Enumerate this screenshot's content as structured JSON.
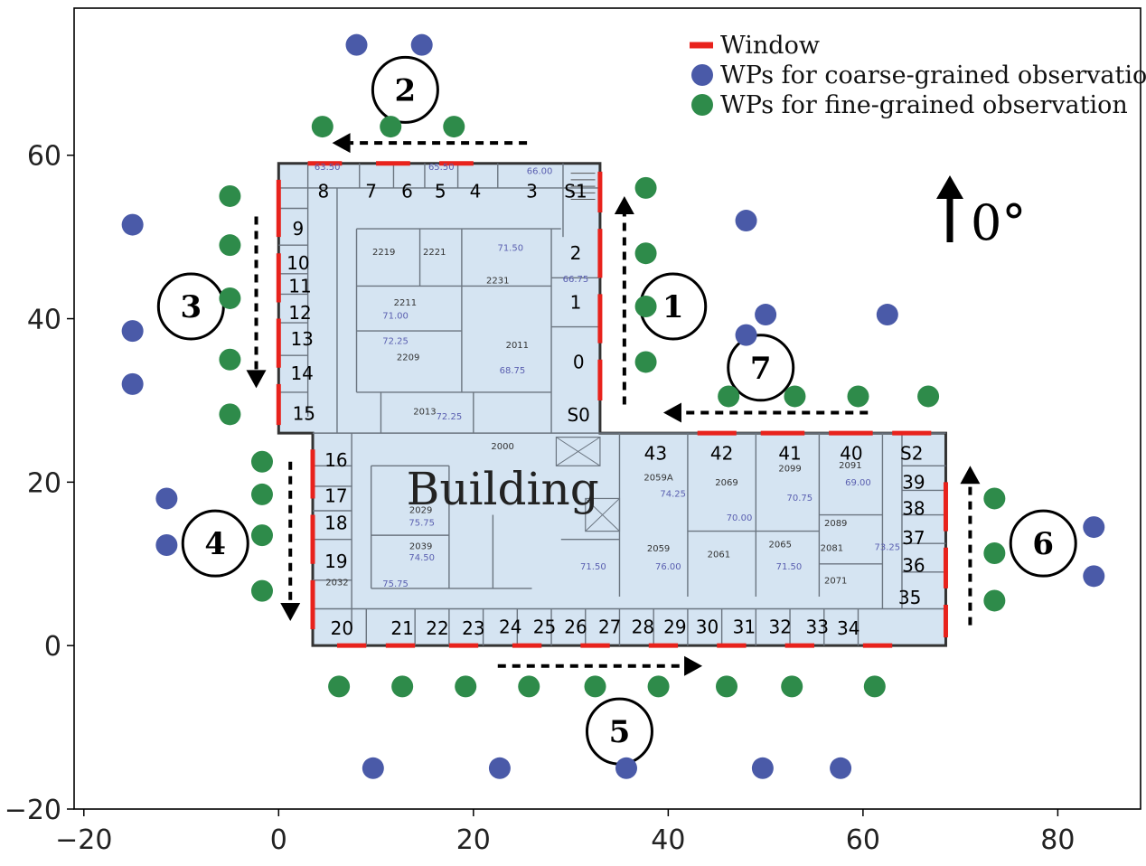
{
  "chart_data": {
    "type": "scatter",
    "xlim": [
      -21,
      88.5
    ],
    "ylim": [
      -20,
      78
    ],
    "x_ticks": [
      -20,
      0,
      20,
      40,
      60,
      80
    ],
    "y_ticks": [
      -20,
      0,
      20,
      40,
      60
    ],
    "x_tick_labels": [
      "−20",
      "0",
      "20",
      "40",
      "60",
      "80"
    ],
    "y_tick_labels": [
      "−20",
      "0",
      "20",
      "40",
      "60"
    ],
    "legend": {
      "placement": "top-right",
      "entries": [
        {
          "label": "Window",
          "color": "#e8221c",
          "kind": "line"
        },
        {
          "label": "WPs for coarse-grained observation",
          "color": "#4a5aa8",
          "kind": "point"
        },
        {
          "label": "WPs for fine-grained observation",
          "color": "#2e8b4a",
          "kind": "point"
        }
      ]
    },
    "series": [
      {
        "name": "WPs for coarse-grained observation",
        "color": "#4a5aa8",
        "points": [
          [
            8,
            73.5
          ],
          [
            14.7,
            73.5
          ],
          [
            -15,
            51.5
          ],
          [
            -15,
            38.5
          ],
          [
            -15,
            32
          ],
          [
            -11.5,
            18
          ],
          [
            -11.5,
            12.3
          ],
          [
            48,
            52
          ],
          [
            50,
            40.5
          ],
          [
            62.5,
            40.5
          ],
          [
            48,
            38
          ],
          [
            83.7,
            14.5
          ],
          [
            83.7,
            8.5
          ],
          [
            9.7,
            -15
          ],
          [
            22.7,
            -15
          ],
          [
            35.7,
            -15
          ],
          [
            49.7,
            -15
          ],
          [
            57.7,
            -15
          ]
        ]
      },
      {
        "name": "WPs for fine-grained observation",
        "color": "#2e8b4a",
        "points": [
          [
            4.5,
            63.5
          ],
          [
            11.5,
            63.5
          ],
          [
            18,
            63.5
          ],
          [
            -5,
            55
          ],
          [
            -5,
            49
          ],
          [
            -5,
            42.5
          ],
          [
            -5,
            35
          ],
          [
            -5,
            28.3
          ],
          [
            -1.7,
            22.5
          ],
          [
            -1.7,
            18.5
          ],
          [
            -1.7,
            13.5
          ],
          [
            -1.7,
            6.7
          ],
          [
            37.7,
            56
          ],
          [
            37.7,
            48
          ],
          [
            37.7,
            41.5
          ],
          [
            37.7,
            34.7
          ],
          [
            46.2,
            30.5
          ],
          [
            53,
            30.5
          ],
          [
            59.5,
            30.5
          ],
          [
            66.7,
            30.5
          ],
          [
            73.5,
            18
          ],
          [
            73.5,
            11.3
          ],
          [
            73.5,
            5.5
          ],
          [
            6.2,
            -5
          ],
          [
            12.7,
            -5
          ],
          [
            19.2,
            -5
          ],
          [
            25.7,
            -5
          ],
          [
            32.5,
            -5
          ],
          [
            39,
            -5
          ],
          [
            46,
            -5
          ],
          [
            52.7,
            -5
          ],
          [
            61.2,
            -5
          ]
        ]
      }
    ],
    "building": {
      "label": "Building",
      "outline": [
        [
          0,
          59
        ],
        [
          33,
          59
        ],
        [
          33,
          26
        ],
        [
          68.5,
          26
        ],
        [
          68.5,
          0
        ],
        [
          3.5,
          0
        ],
        [
          3.5,
          26
        ],
        [
          0,
          26
        ]
      ],
      "windows": [
        {
          "from": [
            3,
            59
          ],
          "to": [
            6.5,
            59
          ]
        },
        {
          "from": [
            10,
            59
          ],
          "to": [
            13.5,
            59
          ]
        },
        {
          "from": [
            16.5,
            59
          ],
          "to": [
            20,
            59
          ]
        },
        {
          "from": [
            0,
            57
          ],
          "to": [
            0,
            50
          ]
        },
        {
          "from": [
            0,
            48
          ],
          "to": [
            0,
            42
          ]
        },
        {
          "from": [
            0,
            40
          ],
          "to": [
            0,
            34
          ]
        },
        {
          "from": [
            0,
            32
          ],
          "to": [
            0,
            27
          ]
        },
        {
          "from": [
            33,
            58
          ],
          "to": [
            33,
            53
          ]
        },
        {
          "from": [
            33,
            51
          ],
          "to": [
            33,
            45
          ]
        },
        {
          "from": [
            33,
            43
          ],
          "to": [
            33,
            37
          ]
        },
        {
          "from": [
            33,
            35
          ],
          "to": [
            33,
            30
          ]
        },
        {
          "from": [
            3.5,
            24
          ],
          "to": [
            3.5,
            18
          ]
        },
        {
          "from": [
            3.5,
            16
          ],
          "to": [
            3.5,
            10
          ]
        },
        {
          "from": [
            3.5,
            8
          ],
          "to": [
            3.5,
            2
          ]
        },
        {
          "from": [
            43,
            26
          ],
          "to": [
            47,
            26
          ]
        },
        {
          "from": [
            49.5,
            26
          ],
          "to": [
            54,
            26
          ]
        },
        {
          "from": [
            56.5,
            26
          ],
          "to": [
            61,
            26
          ]
        },
        {
          "from": [
            63,
            26
          ],
          "to": [
            67,
            26
          ]
        },
        {
          "from": [
            68.5,
            20
          ],
          "to": [
            68.5,
            14
          ]
        },
        {
          "from": [
            68.5,
            12
          ],
          "to": [
            68.5,
            7
          ]
        },
        {
          "from": [
            68.5,
            5
          ],
          "to": [
            68.5,
            1
          ]
        },
        {
          "from": [
            6,
            0
          ],
          "to": [
            9,
            0
          ]
        },
        {
          "from": [
            11,
            0
          ],
          "to": [
            14,
            0
          ]
        },
        {
          "from": [
            17.5,
            0
          ],
          "to": [
            20.5,
            0
          ]
        },
        {
          "from": [
            24,
            0
          ],
          "to": [
            27,
            0
          ]
        },
        {
          "from": [
            31,
            0
          ],
          "to": [
            34,
            0
          ]
        },
        {
          "from": [
            38,
            0
          ],
          "to": [
            41,
            0
          ]
        },
        {
          "from": [
            45,
            0
          ],
          "to": [
            48,
            0
          ]
        },
        {
          "from": [
            52,
            0
          ],
          "to": [
            55,
            0
          ]
        },
        {
          "from": [
            60,
            0
          ],
          "to": [
            63,
            0
          ]
        }
      ],
      "room_labels": [
        {
          "t": "8",
          "x": 4.6,
          "y": 55.6
        },
        {
          "t": "7",
          "x": 9.5,
          "y": 55.6
        },
        {
          "t": "6",
          "x": 13.2,
          "y": 55.6
        },
        {
          "t": "5",
          "x": 16.6,
          "y": 55.6
        },
        {
          "t": "4",
          "x": 20.2,
          "y": 55.6
        },
        {
          "t": "3",
          "x": 26,
          "y": 55.6
        },
        {
          "t": "S1",
          "x": 30.5,
          "y": 55.6
        },
        {
          "t": "9",
          "x": 2,
          "y": 51
        },
        {
          "t": "10",
          "x": 2,
          "y": 46.8
        },
        {
          "t": "11",
          "x": 2.2,
          "y": 44
        },
        {
          "t": "12",
          "x": 2.2,
          "y": 40.7
        },
        {
          "t": "13",
          "x": 2.4,
          "y": 37.5
        },
        {
          "t": "14",
          "x": 2.4,
          "y": 33.3
        },
        {
          "t": "15",
          "x": 2.6,
          "y": 28.4
        },
        {
          "t": "2",
          "x": 30.5,
          "y": 48
        },
        {
          "t": "1",
          "x": 30.5,
          "y": 42
        },
        {
          "t": "0",
          "x": 30.8,
          "y": 34.7
        },
        {
          "t": "S0",
          "x": 30.8,
          "y": 28.2
        },
        {
          "t": "43",
          "x": 38.7,
          "y": 23.5
        },
        {
          "t": "42",
          "x": 45.5,
          "y": 23.5
        },
        {
          "t": "41",
          "x": 52.5,
          "y": 23.5
        },
        {
          "t": "40",
          "x": 58.8,
          "y": 23.5
        },
        {
          "t": "S2",
          "x": 65,
          "y": 23.5
        },
        {
          "t": "39",
          "x": 65.2,
          "y": 20
        },
        {
          "t": "38",
          "x": 65.2,
          "y": 16.8
        },
        {
          "t": "37",
          "x": 65.2,
          "y": 13.2
        },
        {
          "t": "36",
          "x": 65.2,
          "y": 9.8
        },
        {
          "t": "35",
          "x": 64.8,
          "y": 5.9
        },
        {
          "t": "16",
          "x": 5.9,
          "y": 22.7
        },
        {
          "t": "17",
          "x": 5.9,
          "y": 18.3
        },
        {
          "t": "18",
          "x": 5.9,
          "y": 15
        },
        {
          "t": "19",
          "x": 5.9,
          "y": 10.3
        },
        {
          "t": "20",
          "x": 6.5,
          "y": 2.1
        },
        {
          "t": "21",
          "x": 12.7,
          "y": 2.1
        },
        {
          "t": "22",
          "x": 16.3,
          "y": 2.1
        },
        {
          "t": "23",
          "x": 20,
          "y": 2.1
        },
        {
          "t": "24",
          "x": 23.8,
          "y": 2.3
        },
        {
          "t": "25",
          "x": 27.3,
          "y": 2.3
        },
        {
          "t": "26",
          "x": 30.5,
          "y": 2.3
        },
        {
          "t": "27",
          "x": 34,
          "y": 2.3
        },
        {
          "t": "28",
          "x": 37.4,
          "y": 2.3
        },
        {
          "t": "29",
          "x": 40.7,
          "y": 2.3
        },
        {
          "t": "30",
          "x": 44,
          "y": 2.3
        },
        {
          "t": "31",
          "x": 47.8,
          "y": 2.3
        },
        {
          "t": "32",
          "x": 51.5,
          "y": 2.3
        },
        {
          "t": "33",
          "x": 55.3,
          "y": 2.3
        },
        {
          "t": "34",
          "x": 58.5,
          "y": 2.1
        }
      ],
      "plan_numbers": [
        {
          "t": "2219",
          "x": 10.8,
          "y": 47.8
        },
        {
          "t": "2221",
          "x": 16,
          "y": 47.8
        },
        {
          "t": "2231",
          "x": 22.5,
          "y": 44.3
        },
        {
          "t": "2211",
          "x": 13,
          "y": 41.6
        },
        {
          "t": "2209",
          "x": 13.3,
          "y": 34.9
        },
        {
          "t": "2011",
          "x": 24.5,
          "y": 36.4
        },
        {
          "t": "2013",
          "x": 15,
          "y": 28.3
        },
        {
          "t": "2000",
          "x": 23,
          "y": 24
        },
        {
          "t": "2059A",
          "x": 39,
          "y": 20.2
        },
        {
          "t": "2069",
          "x": 46,
          "y": 19.6
        },
        {
          "t": "2099",
          "x": 52.5,
          "y": 21.3
        },
        {
          "t": "2091",
          "x": 58.7,
          "y": 21.7
        },
        {
          "t": "2029",
          "x": 14.6,
          "y": 16.2
        },
        {
          "t": "2039",
          "x": 14.6,
          "y": 11.8
        },
        {
          "t": "2032",
          "x": 6,
          "y": 7.4
        },
        {
          "t": "2059",
          "x": 39,
          "y": 11.5
        },
        {
          "t": "2061",
          "x": 45.2,
          "y": 10.8
        },
        {
          "t": "2065",
          "x": 51.5,
          "y": 12
        },
        {
          "t": "2081",
          "x": 56.8,
          "y": 11.6
        },
        {
          "t": "2089",
          "x": 57.2,
          "y": 14.6
        },
        {
          "t": "2071",
          "x": 57.2,
          "y": 7.6
        }
      ],
      "plan_values": [
        {
          "t": "63.50",
          "x": 5,
          "y": 58.2
        },
        {
          "t": "65.50",
          "x": 16.7,
          "y": 58.2
        },
        {
          "t": "66.00",
          "x": 26.8,
          "y": 57.7
        },
        {
          "t": "71.50",
          "x": 23.8,
          "y": 48.3
        },
        {
          "t": "66.75",
          "x": 30.5,
          "y": 44.5
        },
        {
          "t": "71.00",
          "x": 12,
          "y": 40
        },
        {
          "t": "72.25",
          "x": 12,
          "y": 36.9
        },
        {
          "t": "68.75",
          "x": 24,
          "y": 33.3
        },
        {
          "t": "72.25",
          "x": 17.5,
          "y": 27.7
        },
        {
          "t": "74.25",
          "x": 40.5,
          "y": 18.2
        },
        {
          "t": "70.75",
          "x": 53.5,
          "y": 17.7
        },
        {
          "t": "69.00",
          "x": 59.5,
          "y": 19.6
        },
        {
          "t": "75.75",
          "x": 14.7,
          "y": 14.7
        },
        {
          "t": "74.50",
          "x": 14.7,
          "y": 10.4
        },
        {
          "t": "75.75",
          "x": 12,
          "y": 7.2
        },
        {
          "t": "70.00",
          "x": 47.3,
          "y": 15.3
        },
        {
          "t": "71.50",
          "x": 32.3,
          "y": 9.3
        },
        {
          "t": "76.00",
          "x": 40,
          "y": 9.3
        },
        {
          "t": "71.50",
          "x": 52.4,
          "y": 9.3
        },
        {
          "t": "73.25",
          "x": 62.5,
          "y": 11.7
        }
      ]
    },
    "routes": [
      {
        "label": "1",
        "from": [
          35.5,
          29.5
        ],
        "to": [
          35.5,
          55
        ],
        "marker": [
          40.5,
          41.5
        ]
      },
      {
        "label": "2",
        "from": [
          25.5,
          61.5
        ],
        "to": [
          5.5,
          61.5
        ],
        "marker": [
          13,
          68
        ]
      },
      {
        "label": "3",
        "from": [
          -2.3,
          52.5
        ],
        "to": [
          -2.3,
          31.5
        ],
        "marker": [
          -9,
          41.5
        ]
      },
      {
        "label": "4",
        "from": [
          1.2,
          22.5
        ],
        "to": [
          1.2,
          3
        ],
        "marker": [
          -6.5,
          12.5
        ]
      },
      {
        "label": "5",
        "from": [
          22.5,
          -2.5
        ],
        "to": [
          43.5,
          -2.5
        ],
        "marker": [
          35,
          -10.5
        ]
      },
      {
        "label": "6",
        "from": [
          71,
          2.5
        ],
        "to": [
          71,
          22
        ],
        "marker": [
          78.5,
          12.5
        ]
      },
      {
        "label": "7",
        "from": [
          60.5,
          28.5
        ],
        "to": [
          39.5,
          28.5
        ],
        "marker": [
          49.5,
          34
        ]
      }
    ],
    "north_label": "0°"
  }
}
